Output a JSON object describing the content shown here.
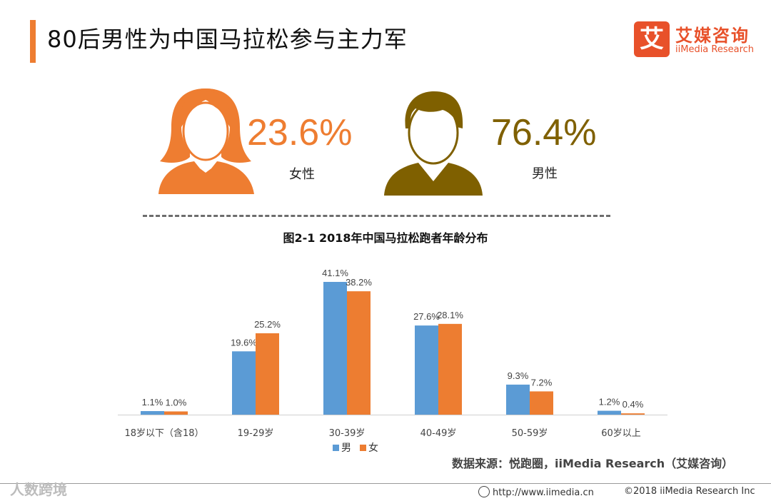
{
  "page": {
    "title": "80后男性为中国马拉松参与主力军",
    "logo_mark": "艾",
    "logo_cn": "艾媒咨询",
    "logo_en": "iiMedia Research"
  },
  "stats": {
    "female": {
      "percent": "23.6%",
      "label": "女性",
      "color": "#ee7d31"
    },
    "male": {
      "percent": "76.4%",
      "label": "男性",
      "color": "#7f6000"
    }
  },
  "chart_data": {
    "type": "bar",
    "title": "图2-1 2018年中国马拉松跑者年龄分布",
    "categories": [
      "18岁以下（含18）",
      "19-29岁",
      "30-39岁",
      "40-49岁",
      "50-59岁",
      "60岁以上"
    ],
    "series": [
      {
        "name": "男",
        "color": "#5b9bd5",
        "values": [
          1.1,
          19.6,
          41.1,
          27.6,
          9.3,
          1.2
        ],
        "labels": [
          "1.1%",
          "19.6%",
          "41.1%",
          "27.6%",
          "9.3%",
          "1.2%"
        ]
      },
      {
        "name": "女",
        "color": "#ed7d31",
        "values": [
          1.0,
          25.2,
          38.2,
          28.1,
          7.2,
          0.4
        ],
        "labels": [
          "1.0%",
          "25.2%",
          "38.2%",
          "28.1%",
          "7.2%",
          "0.4%"
        ]
      }
    ],
    "ylim": [
      0,
      45
    ],
    "grid": false,
    "legend_position": "bottom"
  },
  "source": "数据来源：悦跑圈，iiMedia Research（艾媒咨询）",
  "footer": {
    "url": "http://www.iimedia.cn",
    "copyright": "©2018  iiMedia Research  Inc"
  },
  "watermark": "人数跨境"
}
